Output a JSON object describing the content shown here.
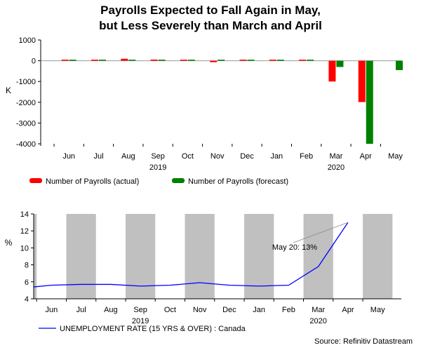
{
  "title_line1": "Payrolls Expected to Fall Again in May,",
  "title_line2": "but Less Severely than March and April",
  "source": "Source: Refinitiv Datastream",
  "colors": {
    "actual": "#ff0000",
    "forecast": "#008000",
    "line": "#0000ff",
    "shade": "#c0c0c0",
    "zero_line": "#999999"
  },
  "chart_data": [
    {
      "type": "bar",
      "categories": [
        "Jun",
        "Jul",
        "Aug",
        "Sep",
        "Oct",
        "Nov",
        "Dec",
        "Jan",
        "Feb",
        "Mar",
        "Apr",
        "May"
      ],
      "year_labels": [
        {
          "label": "2019",
          "category": "Sep"
        },
        {
          "label": "2020",
          "category": "Mar"
        }
      ],
      "ylabel": "K",
      "ylim": [
        -4000,
        1000
      ],
      "yticks": [
        "1000",
        "0",
        "-1000",
        "-2000",
        "-3000",
        "-4000"
      ],
      "series": [
        {
          "name": "Number of Payrolls (actual)",
          "values": [
            25,
            10,
            95,
            55,
            15,
            -70,
            35,
            35,
            25,
            -1000,
            -1990,
            null
          ]
        },
        {
          "name": "Number of Payrolls (forecast)",
          "values": [
            25,
            15,
            15,
            10,
            5,
            10,
            40,
            15,
            15,
            -300,
            -4000,
            -450
          ]
        }
      ],
      "legend_position": "bottom"
    },
    {
      "type": "line",
      "categories": [
        "Jun",
        "Jul",
        "Aug",
        "Sep",
        "Oct",
        "Nov",
        "Dec",
        "Jan",
        "Feb",
        "Mar",
        "Apr",
        "May"
      ],
      "year_labels": [
        {
          "label": "2019",
          "category": "Sep"
        },
        {
          "label": "2020",
          "category": "Mar"
        }
      ],
      "ylabel": "%",
      "ylim": [
        4,
        14
      ],
      "yticks": [
        "14",
        "12",
        "10",
        "8",
        "6",
        "4"
      ],
      "series": [
        {
          "name": "UNEMPLOYMENT RATE (15 YRS & OVER) : Canada",
          "x": [
            "2019-05",
            "2019-06",
            "2019-07",
            "2019-08",
            "2019-09",
            "2019-10",
            "2019-11",
            "2019-12",
            "2020-01",
            "2020-02",
            "2020-03",
            "2020-04",
            "2020-05"
          ],
          "values": [
            5.4,
            5.6,
            5.7,
            5.7,
            5.5,
            5.6,
            5.9,
            5.6,
            5.5,
            5.6,
            7.8,
            13.0,
            null
          ]
        }
      ],
      "annotation": "May 20: 13%",
      "legend_position": "bottom-left"
    }
  ]
}
